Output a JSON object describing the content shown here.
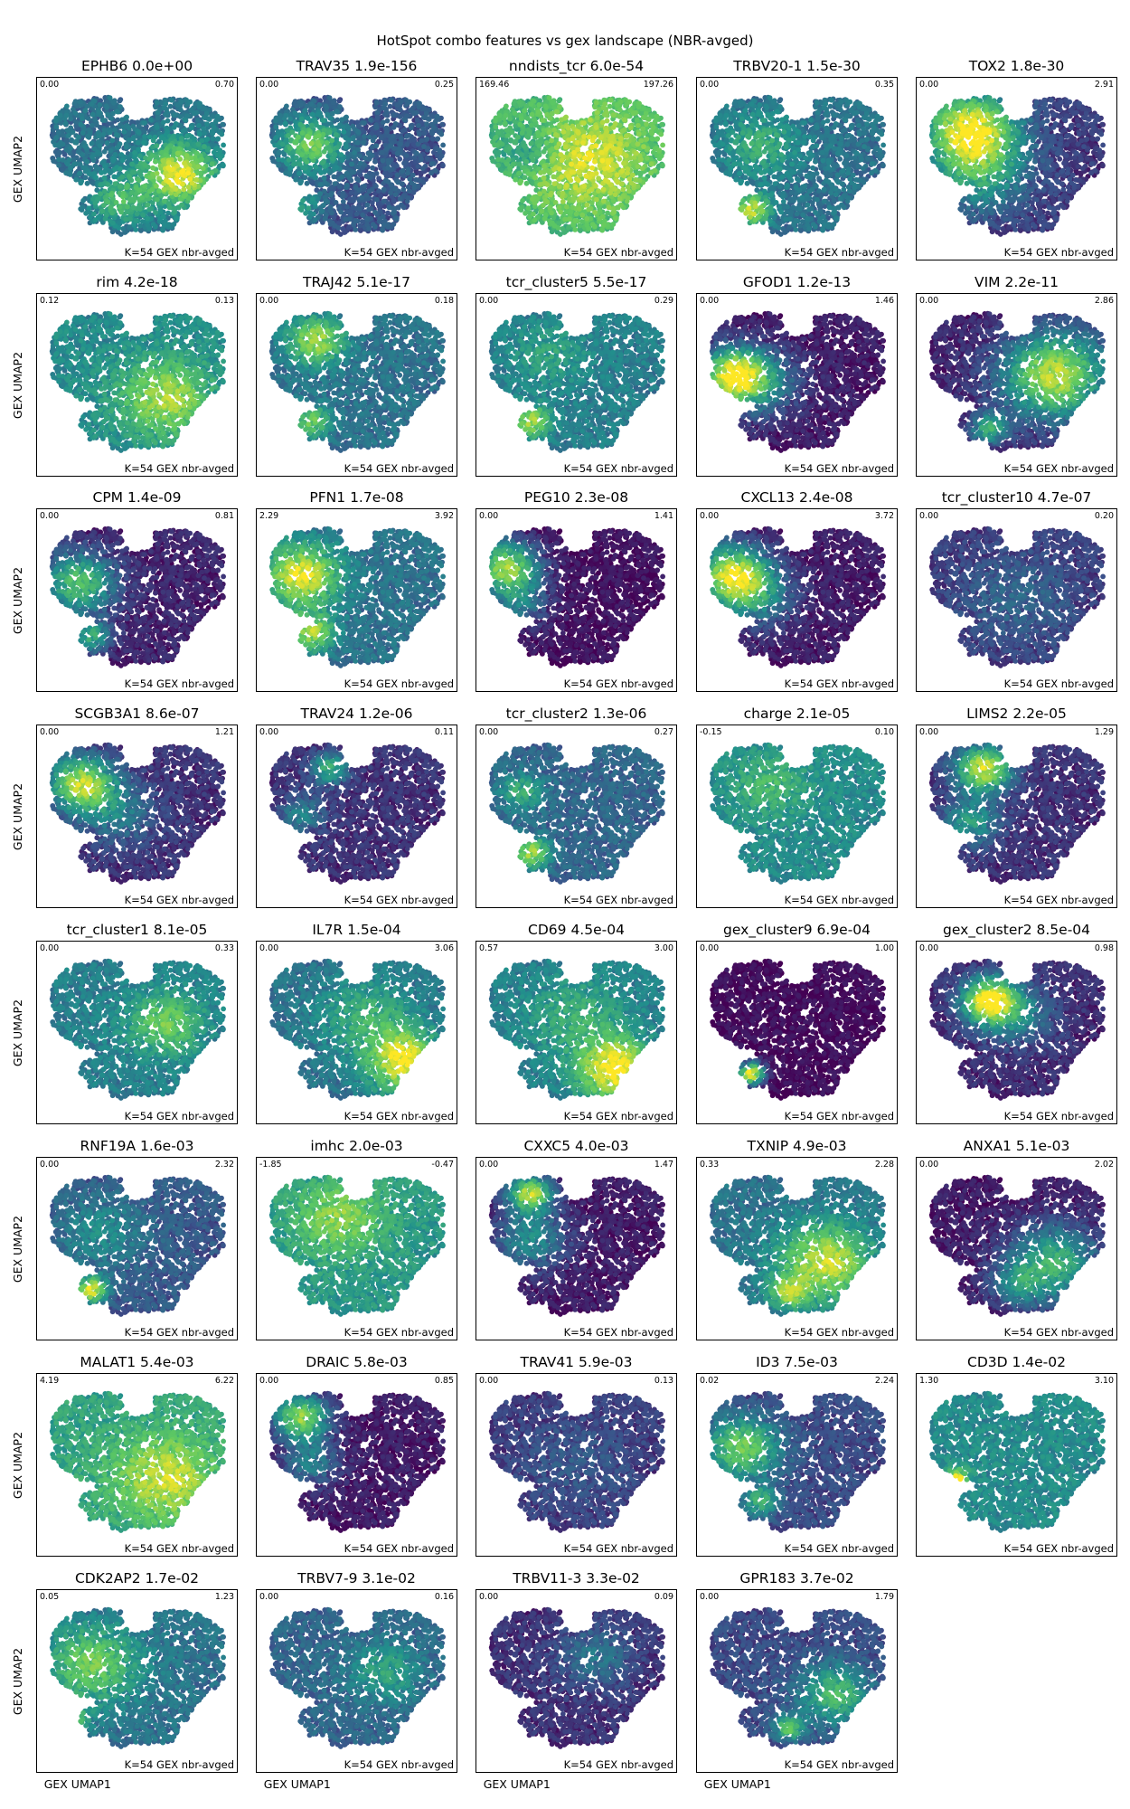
{
  "chart_data": {
    "type": "scatter",
    "title": "HotSpot combo features vs gex landscape (NBR-avged)",
    "xlabel": "GEX UMAP1",
    "ylabel": "GEX UMAP2",
    "panel_label": "K=54 GEX nbr-avged",
    "colormap": "viridis",
    "colormap_stops": [
      "#440154",
      "#3b528b",
      "#21918c",
      "#5ec962",
      "#fde725"
    ],
    "panels": [
      {
        "name": "EPHB6",
        "pval": "0.0e+00",
        "vmin": "0.00",
        "vmax": "0.70",
        "base": 0.35,
        "blobs": [
          [
            0.72,
            0.55,
            0.2,
            0.6
          ],
          [
            0.4,
            0.72,
            0.15,
            0.3
          ]
        ],
        "hot": "bottom-right"
      },
      {
        "name": "TRAV35",
        "pval": "1.9e-156",
        "vmin": "0.00",
        "vmax": "0.25",
        "base": 0.25,
        "blobs": [
          [
            0.25,
            0.35,
            0.18,
            0.5
          ],
          [
            0.2,
            0.75,
            0.1,
            0.3
          ]
        ],
        "hot": "left"
      },
      {
        "name": "nndists_tcr",
        "pval": "6.0e-54",
        "vmin": "169.46",
        "vmax": "197.26",
        "base": 0.62,
        "blobs": [
          [
            0.55,
            0.45,
            0.35,
            0.3
          ],
          [
            0.25,
            0.4,
            0.15,
            -0.2
          ]
        ],
        "hot": "right"
      },
      {
        "name": "TRBV20-1",
        "pval": "1.5e-30",
        "vmin": "0.00",
        "vmax": "0.35",
        "base": 0.35,
        "blobs": [
          [
            0.25,
            0.78,
            0.1,
            0.55
          ],
          [
            0.3,
            0.35,
            0.2,
            0.25
          ]
        ],
        "hot": "bottom-left"
      },
      {
        "name": "TOX2",
        "pval": "1.8e-30",
        "vmin": "0.00",
        "vmax": "2.91",
        "base": 0.15,
        "blobs": [
          [
            0.25,
            0.25,
            0.25,
            0.8
          ],
          [
            0.3,
            0.55,
            0.25,
            0.35
          ]
        ],
        "hot": "top-left"
      },
      {
        "name": "rim",
        "pval": "4.2e-18",
        "vmin": "0.12",
        "vmax": "0.13",
        "base": 0.45,
        "blobs": [
          [
            0.65,
            0.6,
            0.25,
            0.4
          ]
        ],
        "hot": "bottom-right"
      },
      {
        "name": "TRAJ42",
        "pval": "5.1e-17",
        "vmin": "0.00",
        "vmax": "0.18",
        "base": 0.35,
        "blobs": [
          [
            0.28,
            0.22,
            0.15,
            0.5
          ],
          [
            0.25,
            0.75,
            0.1,
            0.4
          ]
        ],
        "hot": "top-left"
      },
      {
        "name": "tcr_cluster5",
        "pval": "5.5e-17",
        "vmin": "0.00",
        "vmax": "0.29",
        "base": 0.4,
        "blobs": [
          [
            0.25,
            0.75,
            0.1,
            0.45
          ],
          [
            0.35,
            0.3,
            0.2,
            0.15
          ]
        ],
        "hot": "bottom-left"
      },
      {
        "name": "GFOD1",
        "pval": "1.2e-13",
        "vmin": "0.00",
        "vmax": "1.46",
        "base": 0.05,
        "blobs": [
          [
            0.15,
            0.45,
            0.18,
            0.8
          ],
          [
            0.3,
            0.5,
            0.22,
            0.35
          ]
        ],
        "hot": "left"
      },
      {
        "name": "VIM",
        "pval": "2.2e-11",
        "vmin": "0.00",
        "vmax": "2.86",
        "base": 0.08,
        "blobs": [
          [
            0.7,
            0.45,
            0.28,
            0.8
          ],
          [
            0.35,
            0.8,
            0.1,
            0.5
          ]
        ],
        "hot": "right"
      },
      {
        "name": "CPM",
        "pval": "1.4e-09",
        "vmin": "0.00",
        "vmax": "0.81",
        "base": 0.08,
        "blobs": [
          [
            0.18,
            0.4,
            0.2,
            0.6
          ],
          [
            0.25,
            0.75,
            0.1,
            0.5
          ]
        ],
        "hot": "left"
      },
      {
        "name": "PFN1",
        "pval": "1.7e-08",
        "vmin": "2.29",
        "vmax": "3.92",
        "base": 0.35,
        "blobs": [
          [
            0.2,
            0.35,
            0.2,
            0.6
          ],
          [
            0.25,
            0.72,
            0.12,
            0.5
          ]
        ],
        "hot": "left"
      },
      {
        "name": "PEG10",
        "pval": "2.3e-08",
        "vmin": "0.00",
        "vmax": "1.41",
        "base": 0.02,
        "blobs": [
          [
            0.12,
            0.3,
            0.18,
            0.8
          ],
          [
            0.2,
            0.55,
            0.15,
            0.3
          ]
        ],
        "hot": "left"
      },
      {
        "name": "CXCL13",
        "pval": "2.4e-08",
        "vmin": "0.00",
        "vmax": "3.72",
        "base": 0.05,
        "blobs": [
          [
            0.15,
            0.35,
            0.2,
            0.85
          ],
          [
            0.3,
            0.5,
            0.2,
            0.3
          ]
        ],
        "hot": "left"
      },
      {
        "name": "tcr_cluster10",
        "pval": "4.7e-07",
        "vmin": "0.00",
        "vmax": "0.20",
        "base": 0.15,
        "blobs": [
          [
            0.5,
            0.5,
            0.3,
            0.15
          ]
        ],
        "hot": "center"
      },
      {
        "name": "SCGB3A1",
        "pval": "8.6e-07",
        "vmin": "0.00",
        "vmax": "1.21",
        "base": 0.12,
        "blobs": [
          [
            0.2,
            0.3,
            0.18,
            0.75
          ],
          [
            0.4,
            0.5,
            0.2,
            0.25
          ]
        ],
        "hot": "top-left"
      },
      {
        "name": "TRAV24",
        "pval": "1.2e-06",
        "vmin": "0.00",
        "vmax": "0.11",
        "base": 0.12,
        "blobs": [
          [
            0.35,
            0.2,
            0.1,
            0.5
          ],
          [
            0.2,
            0.5,
            0.12,
            0.3
          ]
        ],
        "hot": "top-left"
      },
      {
        "name": "tcr_cluster2",
        "pval": "1.3e-06",
        "vmin": "0.00",
        "vmax": "0.27",
        "base": 0.3,
        "blobs": [
          [
            0.25,
            0.75,
            0.1,
            0.55
          ],
          [
            0.2,
            0.35,
            0.12,
            0.3
          ]
        ],
        "hot": "bottom-left"
      },
      {
        "name": "charge",
        "pval": "2.1e-05",
        "vmin": "-0.15",
        "vmax": "0.10",
        "base": 0.45,
        "blobs": [
          [
            0.35,
            0.3,
            0.2,
            0.2
          ]
        ],
        "hot": "left"
      },
      {
        "name": "LIMS2",
        "pval": "2.2e-05",
        "vmin": "0.00",
        "vmax": "1.29",
        "base": 0.12,
        "blobs": [
          [
            0.32,
            0.2,
            0.15,
            0.8
          ],
          [
            0.25,
            0.55,
            0.15,
            0.4
          ]
        ],
        "hot": "top-left"
      },
      {
        "name": "tcr_cluster1",
        "pval": "8.1e-05",
        "vmin": "0.00",
        "vmax": "0.33",
        "base": 0.4,
        "blobs": [
          [
            0.65,
            0.45,
            0.2,
            0.35
          ]
        ],
        "hot": "right"
      },
      {
        "name": "IL7R",
        "pval": "1.5e-04",
        "vmin": "0.00",
        "vmax": "3.06",
        "base": 0.35,
        "blobs": [
          [
            0.75,
            0.7,
            0.2,
            0.6
          ],
          [
            0.55,
            0.4,
            0.25,
            0.25
          ]
        ],
        "hot": "bottom-right"
      },
      {
        "name": "CD69",
        "pval": "4.5e-04",
        "vmin": "0.57",
        "vmax": "3.00",
        "base": 0.4,
        "blobs": [
          [
            0.7,
            0.75,
            0.2,
            0.6
          ],
          [
            0.5,
            0.4,
            0.25,
            0.2
          ]
        ],
        "hot": "bottom-right"
      },
      {
        "name": "gex_cluster9",
        "pval": "6.9e-04",
        "vmin": "0.00",
        "vmax": "1.00",
        "base": 0.0,
        "blobs": [
          [
            0.25,
            0.78,
            0.07,
            1.0
          ]
        ],
        "hot": "bottom-left"
      },
      {
        "name": "gex_cluster2",
        "pval": "8.5e-04",
        "vmin": "0.00",
        "vmax": "0.98",
        "base": 0.1,
        "blobs": [
          [
            0.35,
            0.3,
            0.15,
            0.85
          ],
          [
            0.5,
            0.4,
            0.2,
            0.3
          ]
        ],
        "hot": "top-left"
      },
      {
        "name": "RNF19A",
        "pval": "1.6e-03",
        "vmin": "0.00",
        "vmax": "2.32",
        "base": 0.25,
        "blobs": [
          [
            0.25,
            0.78,
            0.08,
            0.7
          ],
          [
            0.3,
            0.4,
            0.25,
            0.2
          ]
        ],
        "hot": "bottom-left"
      },
      {
        "name": "imhc",
        "pval": "2.0e-03",
        "vmin": "-1.85",
        "vmax": "-0.47",
        "base": 0.5,
        "blobs": [
          [
            0.4,
            0.3,
            0.25,
            0.3
          ]
        ],
        "hot": "left"
      },
      {
        "name": "CXXC5",
        "pval": "4.0e-03",
        "vmin": "0.00",
        "vmax": "1.47",
        "base": 0.05,
        "blobs": [
          [
            0.25,
            0.15,
            0.12,
            0.8
          ],
          [
            0.25,
            0.45,
            0.2,
            0.4
          ]
        ],
        "hot": "top-left"
      },
      {
        "name": "TXNIP",
        "pval": "4.9e-03",
        "vmin": "0.33",
        "vmax": "2.28",
        "base": 0.35,
        "blobs": [
          [
            0.65,
            0.6,
            0.25,
            0.55
          ],
          [
            0.45,
            0.8,
            0.1,
            0.4
          ]
        ],
        "hot": "right"
      },
      {
        "name": "ANXA1",
        "pval": "5.1e-03",
        "vmin": "0.00",
        "vmax": "2.02",
        "base": 0.05,
        "blobs": [
          [
            0.7,
            0.6,
            0.25,
            0.55
          ],
          [
            0.5,
            0.75,
            0.15,
            0.3
          ]
        ],
        "hot": "bottom-right"
      },
      {
        "name": "MALAT1",
        "pval": "5.4e-03",
        "vmin": "4.19",
        "vmax": "6.22",
        "base": 0.55,
        "blobs": [
          [
            0.65,
            0.6,
            0.28,
            0.35
          ]
        ],
        "hot": "right"
      },
      {
        "name": "DRAIC",
        "pval": "5.8e-03",
        "vmin": "0.00",
        "vmax": "0.85",
        "base": 0.05,
        "blobs": [
          [
            0.2,
            0.2,
            0.15,
            0.75
          ],
          [
            0.25,
            0.5,
            0.15,
            0.35
          ]
        ],
        "hot": "top-left"
      },
      {
        "name": "TRAV41",
        "pval": "5.9e-03",
        "vmin": "0.00",
        "vmax": "0.13",
        "base": 0.15,
        "blobs": [
          [
            0.5,
            0.5,
            0.3,
            0.1
          ]
        ],
        "hot": "center"
      },
      {
        "name": "ID3",
        "pval": "7.5e-03",
        "vmin": "0.02",
        "vmax": "2.24",
        "base": 0.2,
        "blobs": [
          [
            0.2,
            0.4,
            0.2,
            0.55
          ],
          [
            0.3,
            0.75,
            0.1,
            0.4
          ]
        ],
        "hot": "left"
      },
      {
        "name": "CD3D",
        "pval": "1.4e-02",
        "vmin": "1.30",
        "vmax": "3.10",
        "base": 0.45,
        "blobs": [
          [
            0.18,
            0.6,
            0.06,
            0.5
          ]
        ],
        "hot": "left"
      },
      {
        "name": "CDK2AP2",
        "pval": "1.7e-02",
        "vmin": "0.05",
        "vmax": "1.23",
        "base": 0.35,
        "blobs": [
          [
            0.25,
            0.4,
            0.25,
            0.4
          ],
          [
            0.15,
            0.75,
            0.08,
            0.4
          ]
        ],
        "hot": "left"
      },
      {
        "name": "TRBV7-9",
        "pval": "3.1e-02",
        "vmin": "0.00",
        "vmax": "0.16",
        "base": 0.3,
        "blobs": [
          [
            0.65,
            0.45,
            0.2,
            0.25
          ]
        ],
        "hot": "right"
      },
      {
        "name": "TRBV11-3",
        "pval": "3.3e-02",
        "vmin": "0.00",
        "vmax": "0.09",
        "base": 0.12,
        "blobs": [
          [
            0.6,
            0.35,
            0.2,
            0.25
          ]
        ],
        "hot": "right"
      },
      {
        "name": "GPR183",
        "pval": "3.7e-02",
        "vmin": "0.00",
        "vmax": "1.79",
        "base": 0.2,
        "blobs": [
          [
            0.7,
            0.6,
            0.2,
            0.45
          ],
          [
            0.45,
            0.82,
            0.08,
            0.5
          ]
        ],
        "hot": "bottom-right"
      }
    ]
  }
}
